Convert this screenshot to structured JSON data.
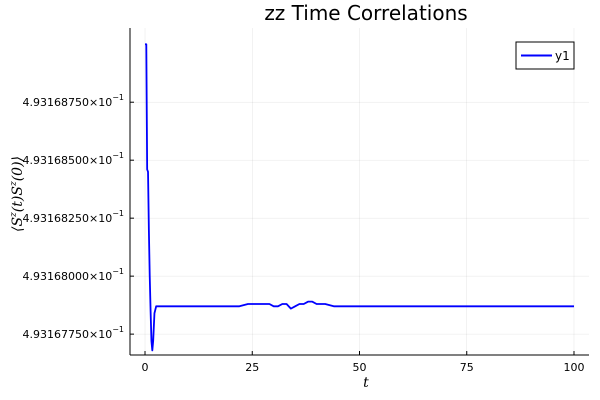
{
  "chart_data": {
    "type": "line",
    "title": "zz Time Correlations",
    "xlabel": "t",
    "ylabel": "⟨S^z(t)S^z(0)⟩",
    "ylabel_parts": {
      "open": "⟨S",
      "sup1": "z",
      "mid": "(t)S",
      "sup2": "z",
      "close": "(0)⟩"
    },
    "xlim": [
      -3.5,
      103.5
    ],
    "ylim": [
      0.49316766,
      0.49316907
    ],
    "x_ticks": [
      0,
      25,
      50,
      75,
      100
    ],
    "x_tick_labels": [
      "0",
      "25",
      "50",
      "75",
      "100"
    ],
    "y_ticks": [
      0.49316775,
      0.493168,
      0.49316825,
      0.4931685,
      0.49316875
    ],
    "y_tick_labels": [
      {
        "mantissa": "4.93167750×10",
        "exp": "−1"
      },
      {
        "mantissa": "4.93168000×10",
        "exp": "−1"
      },
      {
        "mantissa": "4.93168250×10",
        "exp": "−1"
      },
      {
        "mantissa": "4.93168500×10",
        "exp": "−1"
      },
      {
        "mantissa": "4.93168750×10",
        "exp": "−1"
      }
    ],
    "grid": true,
    "legend_position": "top-right",
    "series": [
      {
        "name": "y1",
        "color": "#0000ff",
        "x": [
          0,
          0.3,
          0.5,
          0.7,
          0.9,
          1.1,
          1.3,
          1.5,
          1.7,
          1.9,
          2.2,
          2.6,
          3,
          5,
          8,
          10,
          12,
          15,
          18,
          20,
          22,
          24,
          25,
          27,
          29,
          30,
          31,
          32,
          33,
          34,
          35,
          36,
          37,
          38,
          39,
          40,
          41,
          42,
          44,
          46,
          48,
          50,
          52,
          55,
          58,
          60,
          62,
          65,
          68,
          70,
          72,
          75,
          78,
          80,
          82,
          85,
          88,
          90,
          92,
          95,
          98,
          100
        ],
        "values": [
          0.493169,
          0.493169,
          0.49316846,
          0.49316845,
          0.4931682,
          0.493168,
          0.49316785,
          0.49316772,
          0.49316768,
          0.49316772,
          0.49316784,
          0.49316787,
          0.49316787,
          0.49316787,
          0.49316787,
          0.49316787,
          0.49316787,
          0.49316787,
          0.49316787,
          0.49316787,
          0.49316787,
          0.49316788,
          0.49316788,
          0.49316788,
          0.49316788,
          0.49316787,
          0.49316787,
          0.49316788,
          0.49316788,
          0.49316786,
          0.49316787,
          0.49316788,
          0.49316788,
          0.49316789,
          0.49316789,
          0.49316788,
          0.49316788,
          0.49316788,
          0.49316787,
          0.49316787,
          0.49316787,
          0.49316787,
          0.49316787,
          0.49316787,
          0.49316787,
          0.49316787,
          0.49316787,
          0.49316787,
          0.49316787,
          0.49316787,
          0.49316787,
          0.49316787,
          0.49316787,
          0.49316787,
          0.49316787,
          0.49316787,
          0.49316787,
          0.49316787,
          0.49316787,
          0.49316787,
          0.49316787,
          0.49316787
        ]
      }
    ]
  }
}
